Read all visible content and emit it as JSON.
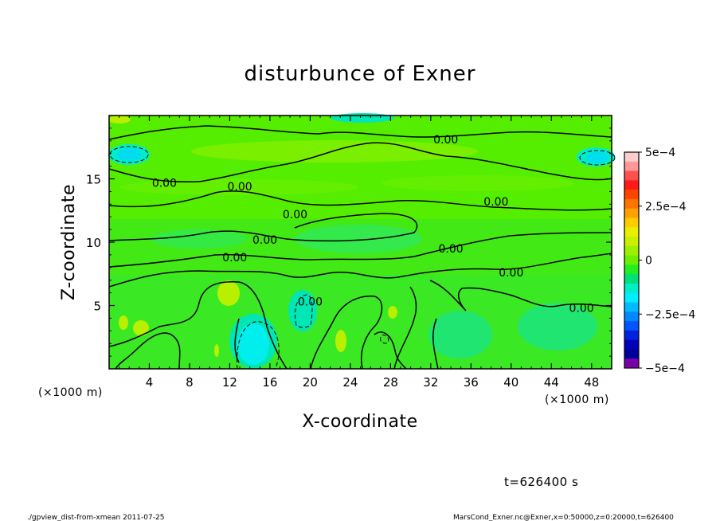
{
  "chart_data": {
    "type": "contour",
    "title": "disturbunce of Exner",
    "xlabel": "X-coordinate",
    "ylabel": "Z-coordinate",
    "x_unit_note": "(×1000 m)",
    "x_tick_labels": [
      "4",
      "8",
      "12",
      "16",
      "20",
      "24",
      "28",
      "32",
      "36",
      "40",
      "44",
      "48"
    ],
    "x_ticks": [
      4,
      8,
      12,
      16,
      20,
      24,
      28,
      32,
      36,
      40,
      44,
      48
    ],
    "y_tick_labels": [
      "5",
      "10",
      "15"
    ],
    "y_ticks": [
      5,
      10,
      15
    ],
    "xlim": [
      0,
      50
    ],
    "ylim": [
      0,
      20
    ],
    "contour_labels": [
      {
        "text": "0.00",
        "x": 33.5,
        "z": 18.1
      },
      {
        "text": "0.00",
        "x": 5.5,
        "z": 14.7
      },
      {
        "text": "0.00",
        "x": 13.0,
        "z": 14.4
      },
      {
        "text": "0.00",
        "x": 18.5,
        "z": 12.2
      },
      {
        "text": "0.00",
        "x": 38.5,
        "z": 13.2
      },
      {
        "text": "0.00",
        "x": 15.5,
        "z": 10.2
      },
      {
        "text": "0.00",
        "x": 12.5,
        "z": 8.8
      },
      {
        "text": "0.00",
        "x": 34.0,
        "z": 9.5
      },
      {
        "text": "0.00",
        "x": 40.0,
        "z": 7.6
      },
      {
        "text": "0.00",
        "x": 20.0,
        "z": 5.3
      },
      {
        "text": "0.00",
        "x": 47.0,
        "z": 4.8
      }
    ],
    "colorbar": {
      "tick_labels": [
        "5e−4",
        "2.5e−4",
        "0",
        "−2.5e−4",
        "−5e−4"
      ],
      "ticks": [
        0.0005,
        0.00025,
        0,
        -0.00025,
        -0.0005
      ],
      "range": [
        -0.0005,
        0.0005
      ],
      "colors_top_to_bottom": [
        "#ffcccc",
        "#ff9999",
        "#ff5050",
        "#ff1a1a",
        "#ff4400",
        "#ff7300",
        "#ffa000",
        "#ffcc00",
        "#e8f000",
        "#c8f000",
        "#9cf000",
        "#6cf000",
        "#22ee22",
        "#00e07a",
        "#00eec8",
        "#00eeff",
        "#00bbff",
        "#0088ff",
        "#0055ff",
        "#0022dd",
        "#0000bb",
        "#000099",
        "#7a00aa"
      ]
    },
    "grid": false,
    "legend": "colorbar-right"
  },
  "time_label": "t=626400 s",
  "footer_left": "./gpview_dist-from-xmean  2011-07-25",
  "footer_right": "MarsCond_Exner.nc@Exner,x=0:50000,z=0:20000,t=626400"
}
